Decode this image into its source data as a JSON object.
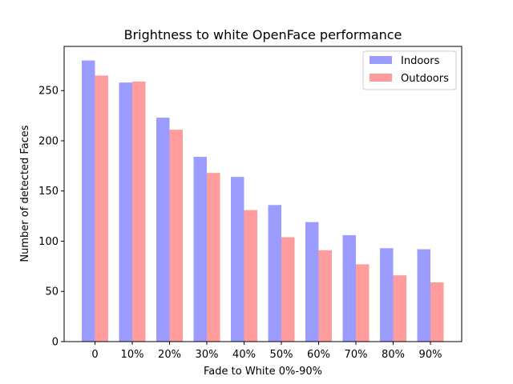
{
  "chart_data": {
    "type": "bar",
    "title": "Brightness to white OpenFace performance",
    "xlabel": "Fade to White 0%-90%",
    "ylabel": "Number of detected Faces",
    "categories": [
      "0",
      "10%",
      "20%",
      "30%",
      "40%",
      "50%",
      "60%",
      "70%",
      "80%",
      "90%"
    ],
    "series": [
      {
        "name": "Indoors",
        "color": "#9c9cff",
        "values": [
          280,
          258,
          223,
          184,
          164,
          136,
          119,
          106,
          93,
          92
        ]
      },
      {
        "name": "Outdoors",
        "color": "#ff9c9c",
        "values": [
          265,
          259,
          211,
          168,
          131,
          104,
          91,
          77,
          66,
          59
        ]
      }
    ],
    "ylim": [
      0,
      294
    ],
    "yticks": [
      0,
      50,
      100,
      150,
      200,
      250
    ],
    "legend": "top-right",
    "grid": false
  }
}
